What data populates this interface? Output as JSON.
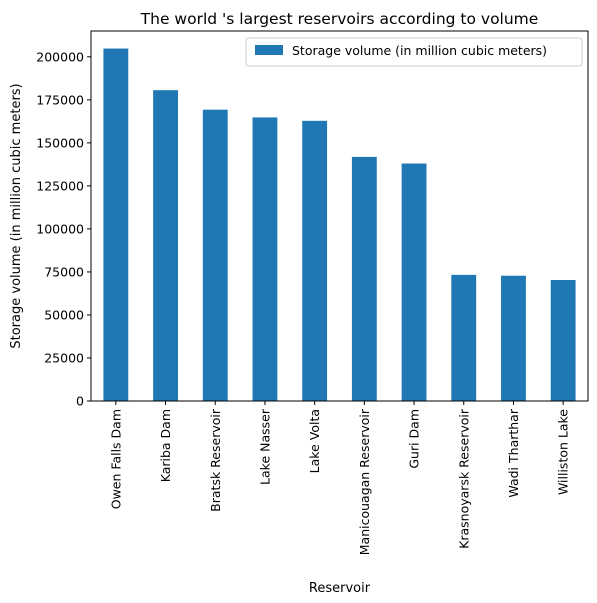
{
  "chart_data": {
    "type": "bar",
    "title": "The world 's largest reservoirs according to volume",
    "xlabel": "Reservoir",
    "ylabel": "Storage volume (in million cubic meters)",
    "categories": [
      "Owen Falls Dam",
      "Kariba Dam",
      "Bratsk Reservoir",
      "Lake Nasser",
      "Lake Volta",
      "Manicouagan Reservoir",
      "Guri Dam",
      "Krasnoyarsk Reservoir",
      "Wadi Tharthar",
      "Williston Lake"
    ],
    "series": [
      {
        "name": "Storage volume (in million cubic meters)",
        "values": [
          204800,
          180600,
          169270,
          164780,
          162810,
          141851,
          138000,
          73300,
          72800,
          70309
        ],
        "color": "#1f77b4"
      }
    ],
    "ylim": [
      0,
      215000
    ],
    "yticks": [
      0,
      25000,
      50000,
      75000,
      100000,
      125000,
      150000,
      175000,
      200000
    ],
    "legend_position": "top-right",
    "grid": false
  }
}
